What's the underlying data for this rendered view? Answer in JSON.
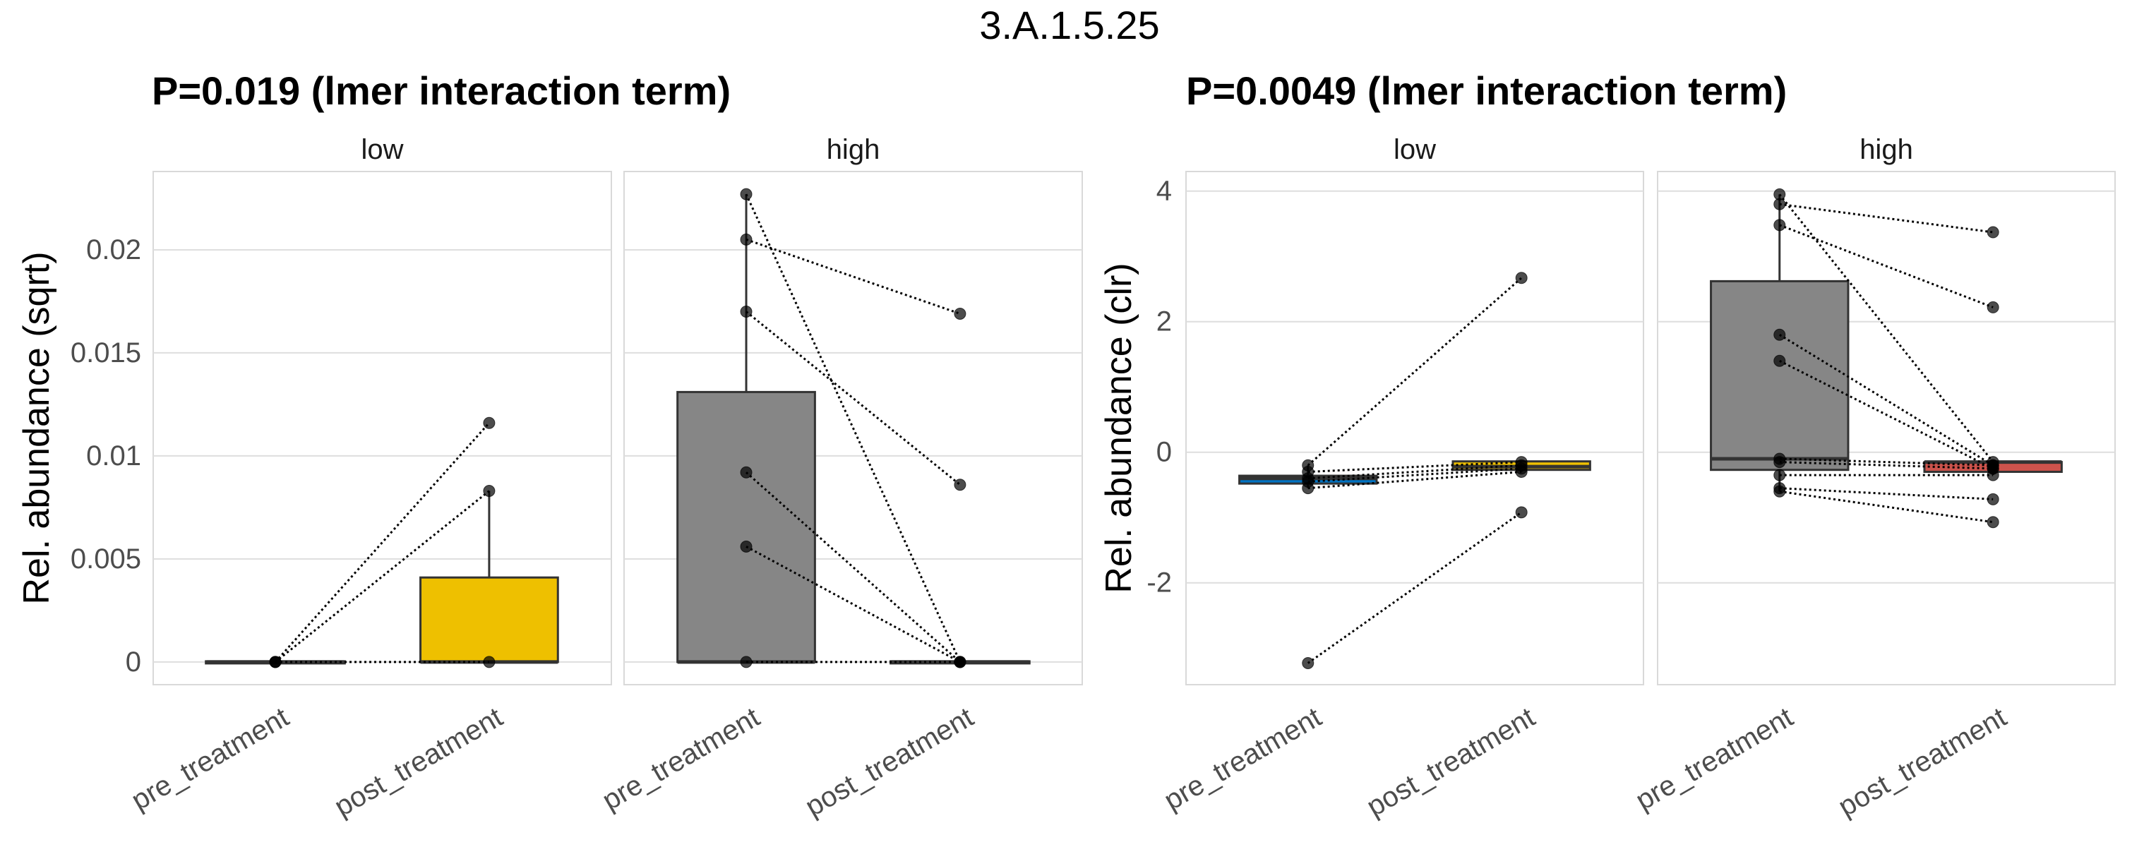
{
  "figure_title": "3.A.1.5.25",
  "chart_data": [
    {
      "type": "box",
      "title": "P=0.019 (lmer interaction term)",
      "ylabel": "Rel. abundance (sqrt)",
      "xlabel": "",
      "ylim": [
        -0.0011,
        0.0238
      ],
      "yticks": [
        0,
        0.005,
        0.01,
        0.015,
        0.02
      ],
      "ytick_labels": [
        "0",
        "0.005",
        "0.01",
        "0.015",
        "0.02"
      ],
      "grid": true,
      "categories": [
        "pre_treatment",
        "post_treatment"
      ],
      "facets": [
        {
          "label": "low",
          "boxes": [
            {
              "category": "pre_treatment",
              "q1": 0,
              "median": 0,
              "q3": 0,
              "whisker_low": 0,
              "whisker_high": 0,
              "fill": "#2a6fbb"
            },
            {
              "category": "post_treatment",
              "q1": 0,
              "median": 0,
              "q3": 0.0041,
              "whisker_low": 0,
              "whisker_high": 0.0083,
              "fill": "#eec000"
            }
          ],
          "pairs": [
            [
              0,
              0.0116
            ],
            [
              0,
              0.0083
            ],
            [
              0,
              0
            ]
          ]
        },
        {
          "label": "high",
          "boxes": [
            {
              "category": "pre_treatment",
              "q1": 0,
              "median": 0,
              "q3": 0.0131,
              "whisker_low": 0,
              "whisker_high": 0.0227,
              "fill": "#868686"
            },
            {
              "category": "post_treatment",
              "q1": 0,
              "median": 0,
              "q3": 0,
              "whisker_low": 0,
              "whisker_high": 0,
              "fill": "#cd534c"
            }
          ],
          "pairs": [
            [
              0.0227,
              0
            ],
            [
              0.0205,
              0.0169
            ],
            [
              0.017,
              0.0086
            ],
            [
              0.0092,
              0
            ],
            [
              0.0056,
              0
            ],
            [
              0,
              0
            ]
          ]
        }
      ]
    },
    {
      "type": "box",
      "title": "P=0.0049 (lmer interaction term)",
      "ylabel": "Rel. abundance (clr)",
      "xlabel": "",
      "ylim": [
        -3.56,
        4.3
      ],
      "yticks": [
        -2,
        0,
        2,
        4
      ],
      "ytick_labels": [
        "-2",
        "0",
        "2",
        "4"
      ],
      "grid": true,
      "categories": [
        "pre_treatment",
        "post_treatment"
      ],
      "facets": [
        {
          "label": "low",
          "boxes": [
            {
              "category": "pre_treatment",
              "q1": -0.48,
              "median": -0.4,
              "q3": -0.36,
              "whisker_low": -0.55,
              "whisker_high": -0.2,
              "fill": "#0073c2"
            },
            {
              "category": "post_treatment",
              "q1": -0.27,
              "median": -0.22,
              "q3": -0.14,
              "whisker_low": -0.3,
              "whisker_high": -0.14,
              "fill": "#efc000"
            }
          ],
          "pairs": [
            [
              -0.2,
              2.67
            ],
            [
              -3.23,
              -0.92
            ],
            [
              -0.3,
              -0.15
            ],
            [
              -0.4,
              -0.2
            ],
            [
              -0.45,
              -0.25
            ],
            [
              -0.55,
              -0.3
            ]
          ]
        },
        {
          "label": "high",
          "boxes": [
            {
              "category": "pre_treatment",
              "q1": -0.27,
              "median": -0.1,
              "q3": 2.62,
              "whisker_low": -0.6,
              "whisker_high": 3.95,
              "fill": "#868686"
            },
            {
              "category": "post_treatment",
              "q1": -0.3,
              "median": -0.15,
              "q3": -0.15,
              "whisker_low": -0.35,
              "whisker_high": -0.15,
              "fill": "#cd534c"
            }
          ],
          "pairs": [
            [
              3.95,
              -0.15
            ],
            [
              3.8,
              3.37
            ],
            [
              3.48,
              2.22
            ],
            [
              1.8,
              -0.2
            ],
            [
              1.4,
              -0.25
            ],
            [
              -0.1,
              -0.2
            ],
            [
              -0.15,
              -0.25
            ],
            [
              -0.35,
              -0.35
            ],
            [
              -0.55,
              -0.72
            ],
            [
              -0.6,
              -1.07
            ]
          ]
        }
      ]
    }
  ]
}
